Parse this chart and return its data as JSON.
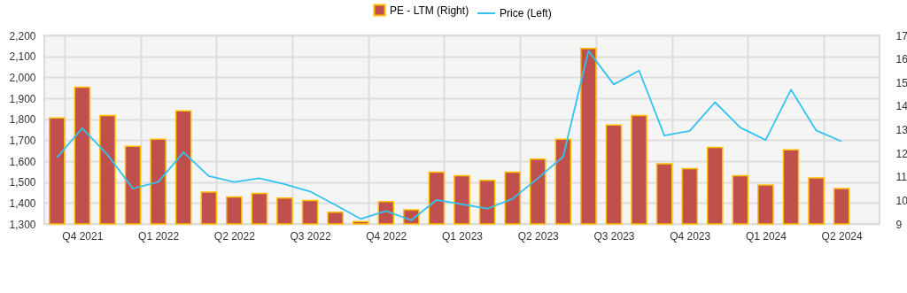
{
  "chart_data": {
    "type": "bar",
    "categories": [
      null,
      "Q4 2021",
      null,
      null,
      "Q1 2022",
      null,
      null,
      "Q2 2022",
      null,
      null,
      "Q3 2022",
      null,
      null,
      "Q4 2022",
      null,
      null,
      "Q1 2023",
      null,
      null,
      "Q2 2023",
      null,
      null,
      "Q3 2023",
      null,
      null,
      "Q4 2023",
      null,
      null,
      "Q1 2024",
      null,
      null,
      "Q2 2024",
      null
    ],
    "series": [
      {
        "name": "PE - LTM (Right)",
        "axis": "y2",
        "color": "#c0504d",
        "values": [
          13.5,
          14.8,
          13.6,
          12.3,
          12.6,
          13.8,
          10.35,
          10.15,
          10.3,
          10.1,
          10.0,
          9.5,
          9.1,
          9.95,
          9.6,
          11.2,
          11.05,
          10.85,
          11.2,
          11.75,
          12.6,
          16.45,
          13.2,
          13.6,
          11.55,
          11.35,
          12.25,
          11.05,
          10.65,
          12.15,
          10.95,
          10.5,
          null
        ]
      },
      {
        "name": "Price (Left)",
        "type": "line",
        "color": "#33c3f0",
        "values": [
          1617,
          1757,
          1630,
          1469,
          1500,
          1642,
          1529,
          1500,
          1518,
          1490,
          1455,
          1391,
          1324,
          1362,
          1318,
          1415,
          1394,
          1373,
          1420,
          1518,
          1621,
          2126,
          1966,
          2032,
          1722,
          1744,
          1881,
          1760,
          1701,
          1941,
          1746,
          1694,
          null
        ]
      }
    ],
    "ylim": [
      1300,
      2200
    ],
    "yticks": [
      {
        "value": 1300,
        "label": "1,300"
      },
      {
        "value": 1400,
        "label": "1,400"
      },
      {
        "value": 1500,
        "label": "1,500"
      },
      {
        "value": 1600,
        "label": "1,600"
      },
      {
        "value": 1700,
        "label": "1,700"
      },
      {
        "value": 1800,
        "label": "1,800"
      },
      {
        "value": 1900,
        "label": "1,900"
      },
      {
        "value": 2000,
        "label": "2,000"
      },
      {
        "value": 2100,
        "label": "2,100"
      },
      {
        "value": 2200,
        "label": "2,200"
      }
    ],
    "y2lim": [
      9,
      17
    ],
    "y2ticks": [
      9,
      10,
      11,
      12,
      13,
      14,
      15,
      16,
      17
    ],
    "grid": true,
    "legend": "top"
  }
}
